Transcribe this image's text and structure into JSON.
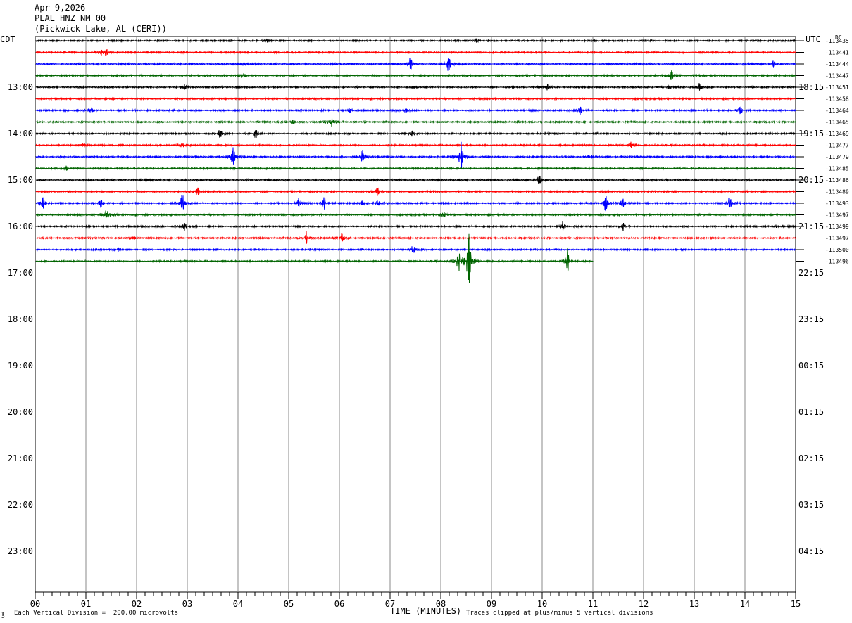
{
  "header": {
    "date": "Apr 9,2026",
    "station": "PLAL HNZ NM 00",
    "location": "(Pickwick Lake, AL (CERI))"
  },
  "left_tz": "CDT",
  "right_tz": "UTC",
  "dc_label": "DC",
  "footer": {
    "scale": "Each Vertical Division =  200.00 microvolts",
    "clip": "Traces clipped at plus/minus 5 vertical divisions",
    "logo": "℥"
  },
  "colors": [
    "#000000",
    "#ff0000",
    "#0000ff",
    "#006400"
  ],
  "chart_data": {
    "type": "line",
    "title": "PLAL HNZ NM 00",
    "xlabel": "TIME (MINUTES)",
    "ylabel": "",
    "x_ticks": [
      "00",
      "01",
      "02",
      "03",
      "04",
      "05",
      "06",
      "07",
      "08",
      "09",
      "10",
      "11",
      "12",
      "13",
      "14",
      "15"
    ],
    "xlim": [
      0,
      15
    ],
    "hour_labels_left": [
      "13:00",
      "14:00",
      "15:00",
      "16:00",
      "17:00",
      "18:00",
      "19:00",
      "20:00",
      "21:00",
      "22:00",
      "23:00"
    ],
    "hour_labels_right": [
      "18:15",
      "19:15",
      "20:15",
      "21:15",
      "22:15",
      "23:15",
      "00:15",
      "01:15",
      "02:15",
      "03:15",
      "04:15"
    ],
    "traces": [
      {
        "dc": "-113435",
        "color": 0,
        "end": 15,
        "events": [
          [
            4.55,
            5
          ],
          [
            8.7,
            3
          ]
        ]
      },
      {
        "dc": "-113441",
        "color": 1,
        "end": 15,
        "events": [
          [
            1.3,
            4
          ],
          [
            1.4,
            6
          ]
        ]
      },
      {
        "dc": "-113444",
        "color": 2,
        "end": 15,
        "events": [
          [
            4.1,
            4
          ],
          [
            7.4,
            12
          ],
          [
            8.15,
            14
          ],
          [
            14.55,
            5
          ]
        ]
      },
      {
        "dc": "-113447",
        "color": 3,
        "end": 15,
        "events": [
          [
            4.1,
            6
          ],
          [
            12.55,
            9
          ],
          [
            13.1,
            4
          ]
        ]
      },
      {
        "dc": "-113451",
        "color": 0,
        "end": 15,
        "events": [
          [
            2.95,
            5
          ],
          [
            7.45,
            3
          ],
          [
            10.1,
            4
          ],
          [
            12.5,
            5
          ],
          [
            13.1,
            6
          ]
        ]
      },
      {
        "dc": "-113458",
        "color": 1,
        "end": 15,
        "events": []
      },
      {
        "dc": "-113464",
        "color": 2,
        "end": 15,
        "events": [
          [
            1.1,
            6
          ],
          [
            6.2,
            4
          ],
          [
            7.3,
            8
          ],
          [
            10.75,
            7
          ],
          [
            13.9,
            8
          ]
        ]
      },
      {
        "dc": "-113465",
        "color": 3,
        "end": 15,
        "events": [
          [
            5.05,
            6
          ],
          [
            5.85,
            8
          ]
        ]
      },
      {
        "dc": "-113469",
        "color": 0,
        "end": 15,
        "events": [
          [
            3.65,
            10
          ],
          [
            4.35,
            8
          ],
          [
            7.45,
            6
          ]
        ]
      },
      {
        "dc": "-113477",
        "color": 1,
        "end": 15,
        "events": [
          [
            0.95,
            4
          ],
          [
            2.9,
            6
          ],
          [
            11.75,
            6
          ]
        ]
      },
      {
        "dc": "-113479",
        "color": 2,
        "end": 15,
        "events": [
          [
            3.9,
            18
          ],
          [
            6.45,
            14
          ],
          [
            8.4,
            26
          ],
          [
            10.95,
            7
          ],
          [
            11.9,
            4
          ]
        ]
      },
      {
        "dc": "-113485",
        "color": 3,
        "end": 15,
        "events": [
          [
            0.6,
            4
          ]
        ]
      },
      {
        "dc": "-113486",
        "color": 0,
        "end": 15,
        "events": [
          [
            9.95,
            12
          ]
        ]
      },
      {
        "dc": "-113489",
        "color": 1,
        "end": 15,
        "events": [
          [
            3.2,
            10
          ],
          [
            6.75,
            9
          ]
        ]
      },
      {
        "dc": "-113493",
        "color": 2,
        "end": 15,
        "events": [
          [
            0.15,
            12
          ],
          [
            1.3,
            10
          ],
          [
            2.9,
            22
          ],
          [
            5.2,
            8
          ],
          [
            5.7,
            12
          ],
          [
            6.45,
            6
          ],
          [
            6.75,
            9
          ],
          [
            11.25,
            14
          ],
          [
            11.6,
            10
          ],
          [
            13.7,
            12
          ]
        ]
      },
      {
        "dc": "-113497",
        "color": 3,
        "end": 15,
        "events": [
          [
            1.4,
            14
          ],
          [
            8.05,
            6
          ]
        ]
      },
      {
        "dc": "-113499",
        "color": 0,
        "end": 15,
        "events": [
          [
            2.95,
            8
          ],
          [
            10.4,
            7
          ],
          [
            11.6,
            6
          ],
          [
            14.6,
            3
          ]
        ]
      },
      {
        "dc": "-113497",
        "color": 1,
        "end": 15,
        "events": [
          [
            1.95,
            4
          ],
          [
            5.35,
            10
          ],
          [
            6.05,
            8
          ]
        ]
      },
      {
        "dc": "-113500",
        "color": 2,
        "end": 15,
        "events": [
          [
            1.65,
            3
          ],
          [
            7.45,
            8
          ]
        ]
      },
      {
        "dc": "-113496",
        "color": 3,
        "end": 11,
        "events": [
          [
            8.35,
            18
          ],
          [
            8.55,
            50
          ],
          [
            10.5,
            20
          ]
        ]
      }
    ]
  }
}
